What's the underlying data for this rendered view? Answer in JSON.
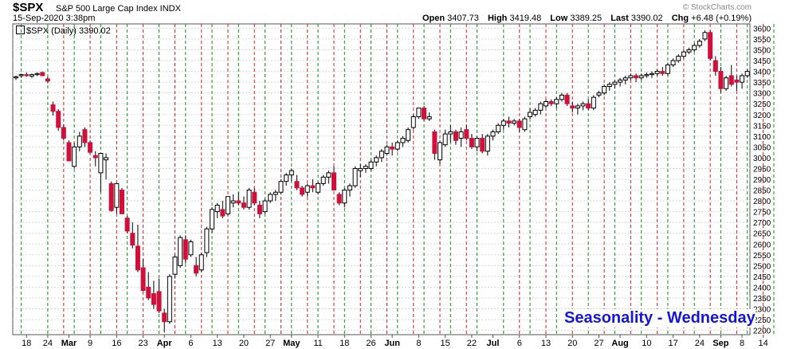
{
  "header": {
    "symbol": "$SPX",
    "description": "S&P 500 Large Cap Index  INDX",
    "timestamp": "15-Sep-2020 3:38pm",
    "open_label": "Open",
    "open_value": "3407.73",
    "high_label": "High",
    "high_value": "3419.48",
    "low_label": "Low",
    "low_value": "3389.25",
    "last_label": "Last",
    "last_value": "3390.02",
    "chg_label": "Chg",
    "chg_value": "+6.48 (+0.19%)",
    "watermark": "© StockCharts.com",
    "legend": "$SPX (Daily) 3390.02"
  },
  "annotation": "Seasonality - Wednesday",
  "colors": {
    "up": "#ffffff",
    "down": "#d0103a",
    "wick": "#000000",
    "red_line": "#d32020",
    "green_line": "#1a8a1a",
    "annotation": "#1515e0"
  },
  "chart_data": {
    "type": "candlestick",
    "ylim": [
      2180,
      3620
    ],
    "y_ticks": [
      2200,
      2250,
      2300,
      2350,
      2400,
      2450,
      2500,
      2550,
      2600,
      2650,
      2700,
      2750,
      2800,
      2850,
      2900,
      2950,
      3000,
      3050,
      3100,
      3150,
      3200,
      3250,
      3300,
      3350,
      3400,
      3450,
      3500,
      3550,
      3600
    ],
    "x_ticks": [
      "18",
      "24",
      "Mar",
      "9",
      "16",
      "23",
      "Apr",
      "6",
      "13",
      "20",
      "27",
      "May",
      "11",
      "18",
      "26",
      "Jun",
      "8",
      "15",
      "22",
      "Jul",
      "6",
      "13",
      "20",
      "27",
      "Aug",
      "10",
      "17",
      "24",
      "Sep",
      "8",
      "14"
    ],
    "x_tick_bold": [
      false,
      false,
      true,
      false,
      false,
      false,
      true,
      false,
      false,
      false,
      false,
      true,
      false,
      false,
      false,
      true,
      false,
      false,
      false,
      true,
      false,
      false,
      false,
      false,
      true,
      false,
      false,
      false,
      true,
      false,
      false
    ],
    "x_tick_days": [
      2,
      6,
      10,
      14,
      19,
      24,
      28,
      33,
      38,
      43,
      48,
      52,
      57,
      62,
      67,
      71,
      76,
      81,
      86,
      90,
      95,
      100,
      105,
      110,
      114,
      119,
      124,
      129,
      133,
      137,
      141
    ],
    "red_lines": [
      9,
      14,
      19,
      24,
      30,
      35,
      40,
      45,
      50,
      55,
      60,
      65,
      70,
      75,
      80,
      85,
      95,
      100,
      105,
      111,
      116,
      121,
      126,
      131,
      136,
      141
    ],
    "green_lines": [
      1,
      6,
      11,
      16,
      21,
      27,
      32,
      37,
      42,
      47,
      52,
      57,
      62,
      67,
      72,
      77,
      82,
      87,
      92,
      97,
      102,
      108,
      113,
      118,
      123,
      128,
      133,
      138,
      143
    ],
    "candles": [
      [
        3370,
        3380,
        3360,
        3375
      ],
      [
        3380,
        3390,
        3370,
        3385
      ],
      [
        3385,
        3395,
        3375,
        3380
      ],
      [
        3378,
        3390,
        3370,
        3385
      ],
      [
        3385,
        3395,
        3378,
        3390
      ],
      [
        3395,
        3398,
        3378,
        3380
      ],
      [
        3365,
        3375,
        3345,
        3355
      ],
      [
        3245,
        3260,
        3195,
        3215
      ],
      [
        3215,
        3225,
        3125,
        3140
      ],
      [
        3140,
        3155,
        3080,
        3090
      ],
      [
        3070,
        3080,
        2985,
        2985
      ],
      [
        2960,
        3070,
        2950,
        3050
      ],
      [
        3050,
        3120,
        3030,
        3100
      ],
      [
        3130,
        3140,
        3050,
        3070
      ],
      [
        3070,
        3080,
        3020,
        3025
      ],
      [
        3010,
        3030,
        2960,
        3000
      ],
      [
        2930,
        3020,
        2840,
        3020
      ],
      [
        2990,
        3020,
        2900,
        3000
      ],
      [
        2880,
        2890,
        2750,
        2755
      ],
      [
        2770,
        2880,
        2740,
        2880
      ],
      [
        2850,
        2860,
        2740,
        2740
      ],
      [
        2720,
        2730,
        2650,
        2660
      ],
      [
        2650,
        2700,
        2580,
        2595
      ],
      [
        2590,
        2690,
        2470,
        2480
      ],
      [
        2490,
        2530,
        2380,
        2385
      ],
      [
        2400,
        2470,
        2340,
        2350
      ],
      [
        2370,
        2430,
        2300,
        2320
      ],
      [
        2380,
        2440,
        2280,
        2290
      ],
      [
        2280,
        2300,
        2190,
        2240
      ],
      [
        2240,
        2460,
        2230,
        2450
      ],
      [
        2460,
        2550,
        2440,
        2540
      ],
      [
        2500,
        2640,
        2490,
        2630
      ],
      [
        2620,
        2640,
        2510,
        2530
      ],
      [
        2550,
        2620,
        2540,
        2610
      ],
      [
        2500,
        2540,
        2450,
        2465
      ],
      [
        2480,
        2560,
        2470,
        2550
      ],
      [
        2560,
        2680,
        2540,
        2670
      ],
      [
        2670,
        2770,
        2650,
        2760
      ],
      [
        2750,
        2790,
        2720,
        2780
      ],
      [
        2760,
        2800,
        2720,
        2730
      ],
      [
        2740,
        2820,
        2730,
        2820
      ],
      [
        2790,
        2830,
        2770,
        2800
      ],
      [
        2800,
        2840,
        2780,
        2790
      ],
      [
        2790,
        2820,
        2760,
        2770
      ],
      [
        2770,
        2860,
        2760,
        2850
      ],
      [
        2840,
        2860,
        2780,
        2790
      ],
      [
        2780,
        2800,
        2720,
        2740
      ],
      [
        2750,
        2810,
        2740,
        2800
      ],
      [
        2800,
        2840,
        2790,
        2830
      ],
      [
        2830,
        2850,
        2800,
        2840
      ],
      [
        2840,
        2900,
        2830,
        2890
      ],
      [
        2890,
        2930,
        2870,
        2920
      ],
      [
        2920,
        2950,
        2890,
        2940
      ],
      [
        2890,
        2920,
        2850,
        2860
      ],
      [
        2860,
        2870,
        2820,
        2830
      ],
      [
        2840,
        2880,
        2820,
        2870
      ],
      [
        2870,
        2900,
        2840,
        2860
      ],
      [
        2840,
        2890,
        2830,
        2880
      ],
      [
        2880,
        2920,
        2870,
        2910
      ],
      [
        2910,
        2940,
        2880,
        2930
      ],
      [
        2930,
        2960,
        2850,
        2850
      ],
      [
        2830,
        2840,
        2780,
        2790
      ],
      [
        2790,
        2860,
        2770,
        2850
      ],
      [
        2850,
        2880,
        2820,
        2870
      ],
      [
        2870,
        2960,
        2860,
        2950
      ],
      [
        2940,
        2970,
        2910,
        2950
      ],
      [
        2950,
        2970,
        2930,
        2960
      ],
      [
        2950,
        2990,
        2940,
        2980
      ],
      [
        2980,
        3010,
        2960,
        3000
      ],
      [
        3000,
        3040,
        2980,
        3030
      ],
      [
        3020,
        3060,
        3010,
        3050
      ],
      [
        3050,
        3070,
        3010,
        3040
      ],
      [
        3040,
        3080,
        3030,
        3070
      ],
      [
        3070,
        3100,
        3050,
        3090
      ],
      [
        3080,
        3140,
        3070,
        3130
      ],
      [
        3140,
        3200,
        3130,
        3190
      ],
      [
        3190,
        3230,
        3180,
        3230
      ],
      [
        3230,
        3240,
        3170,
        3180
      ],
      [
        3180,
        3210,
        3170,
        3190
      ],
      [
        3120,
        3130,
        2990,
        3020
      ],
      [
        2990,
        3080,
        2970,
        3070
      ],
      [
        3060,
        3130,
        3050,
        3110
      ],
      [
        3110,
        3150,
        3070,
        3120
      ],
      [
        3120,
        3130,
        3060,
        3080
      ],
      [
        3090,
        3140,
        3050,
        3120
      ],
      [
        3130,
        3150,
        3080,
        3090
      ],
      [
        3090,
        3110,
        3040,
        3050
      ],
      [
        3050,
        3100,
        3030,
        3090
      ],
      [
        3090,
        3110,
        3020,
        3030
      ],
      [
        3030,
        3110,
        3010,
        3100
      ],
      [
        3100,
        3130,
        3080,
        3120
      ],
      [
        3120,
        3160,
        3110,
        3150
      ],
      [
        3150,
        3180,
        3130,
        3170
      ],
      [
        3170,
        3190,
        3140,
        3160
      ],
      [
        3160,
        3180,
        3150,
        3170
      ],
      [
        3170,
        3180,
        3120,
        3140
      ],
      [
        3130,
        3190,
        3120,
        3180
      ],
      [
        3190,
        3230,
        3180,
        3210
      ],
      [
        3200,
        3230,
        3190,
        3220
      ],
      [
        3220,
        3260,
        3200,
        3250
      ],
      [
        3240,
        3270,
        3230,
        3260
      ],
      [
        3260,
        3270,
        3240,
        3250
      ],
      [
        3250,
        3280,
        3230,
        3270
      ],
      [
        3270,
        3300,
        3260,
        3290
      ],
      [
        3290,
        3300,
        3240,
        3250
      ],
      [
        3240,
        3260,
        3210,
        3230
      ],
      [
        3230,
        3250,
        3200,
        3240
      ],
      [
        3240,
        3260,
        3220,
        3250
      ],
      [
        3250,
        3270,
        3220,
        3230
      ],
      [
        3230,
        3290,
        3220,
        3280
      ],
      [
        3290,
        3310,
        3280,
        3300
      ],
      [
        3300,
        3340,
        3290,
        3330
      ],
      [
        3330,
        3350,
        3310,
        3340
      ],
      [
        3340,
        3360,
        3320,
        3350
      ],
      [
        3350,
        3370,
        3330,
        3360
      ],
      [
        3360,
        3380,
        3340,
        3370
      ],
      [
        3370,
        3390,
        3360,
        3380
      ],
      [
        3380,
        3390,
        3350,
        3370
      ],
      [
        3370,
        3390,
        3360,
        3380
      ],
      [
        3380,
        3395,
        3370,
        3385
      ],
      [
        3385,
        3400,
        3370,
        3390
      ],
      [
        3390,
        3410,
        3380,
        3400
      ],
      [
        3400,
        3420,
        3380,
        3390
      ],
      [
        3390,
        3440,
        3380,
        3430
      ],
      [
        3430,
        3460,
        3420,
        3450
      ],
      [
        3450,
        3480,
        3440,
        3470
      ],
      [
        3470,
        3500,
        3460,
        3490
      ],
      [
        3490,
        3510,
        3480,
        3500
      ],
      [
        3500,
        3530,
        3490,
        3520
      ],
      [
        3520,
        3550,
        3510,
        3540
      ],
      [
        3550,
        3590,
        3540,
        3580
      ],
      [
        3580,
        3590,
        3450,
        3460
      ],
      [
        3450,
        3470,
        3380,
        3400
      ],
      [
        3400,
        3420,
        3300,
        3320
      ],
      [
        3320,
        3380,
        3310,
        3370
      ],
      [
        3380,
        3430,
        3330,
        3340
      ],
      [
        3360,
        3380,
        3310,
        3350
      ],
      [
        3350,
        3390,
        3320,
        3380
      ],
      [
        3380,
        3410,
        3370,
        3400
      ]
    ]
  }
}
